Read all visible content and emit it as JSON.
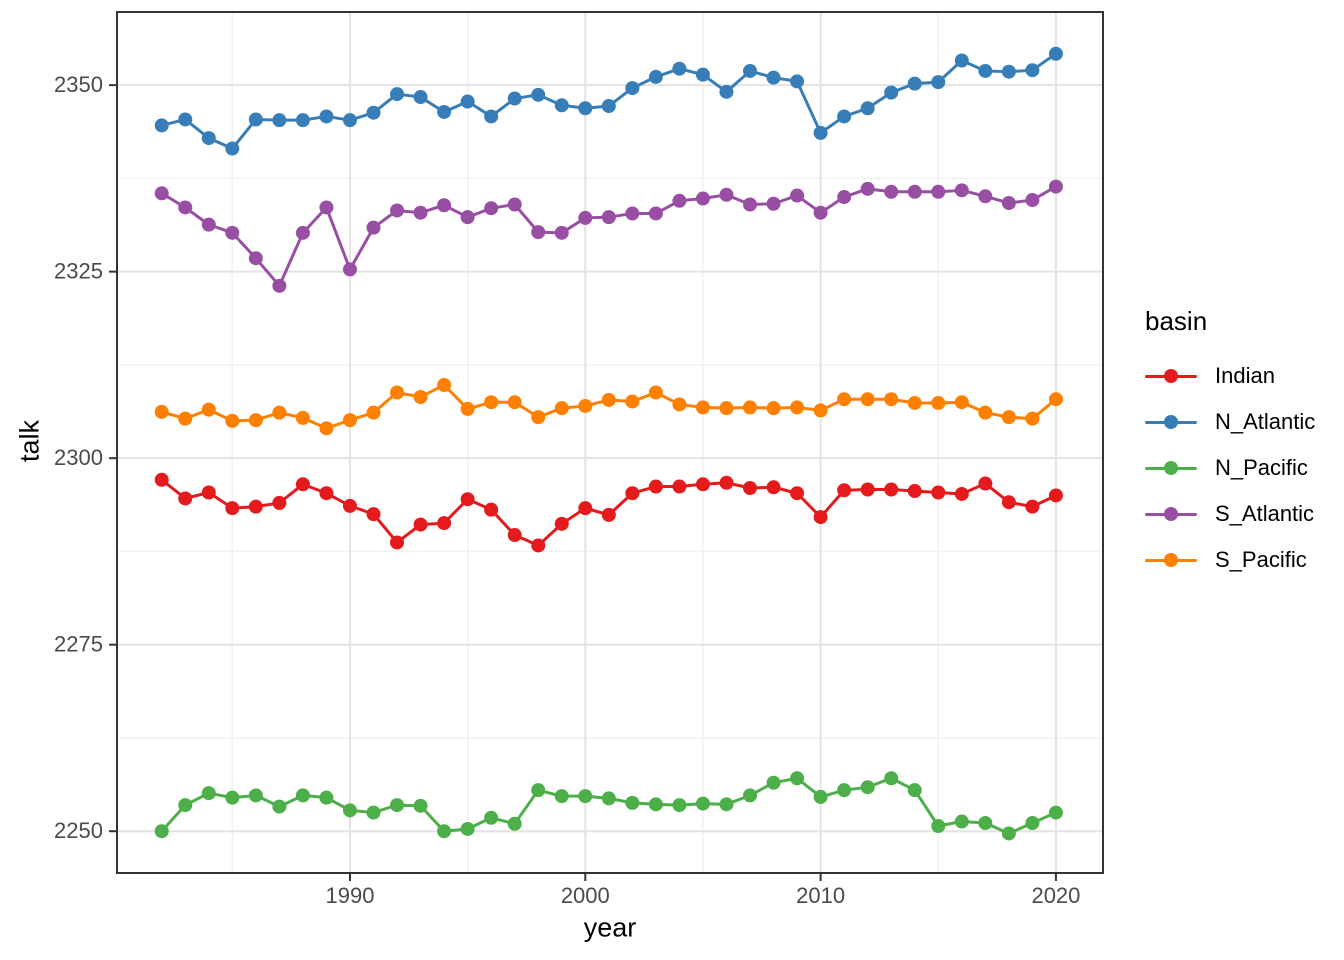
{
  "chart_data": {
    "type": "line",
    "title": "",
    "xlabel": "year",
    "ylabel": "talk",
    "legend_title": "basin",
    "legend_position": "right",
    "grid": true,
    "x": [
      1982,
      1983,
      1984,
      1985,
      1986,
      1987,
      1988,
      1989,
      1990,
      1991,
      1992,
      1993,
      1994,
      1995,
      1996,
      1997,
      1998,
      1999,
      2000,
      2001,
      2002,
      2003,
      2004,
      2005,
      2006,
      2007,
      2008,
      2009,
      2010,
      2011,
      2012,
      2013,
      2014,
      2015,
      2016,
      2017,
      2018,
      2019,
      2020
    ],
    "series": [
      {
        "name": "Indian",
        "color": "#E41A1C",
        "values": [
          2297.1,
          2294.6,
          2295.4,
          2293.3,
          2293.5,
          2294.0,
          2296.5,
          2295.3,
          2293.6,
          2292.5,
          2288.7,
          2291.1,
          2291.3,
          2294.5,
          2293.1,
          2289.7,
          2288.3,
          2291.2,
          2293.3,
          2292.4,
          2295.3,
          2296.2,
          2296.2,
          2296.5,
          2296.7,
          2296.0,
          2296.1,
          2295.3,
          2292.1,
          2295.7,
          2295.8,
          2295.8,
          2295.6,
          2295.4,
          2295.2,
          2296.6,
          2294.1,
          2293.5,
          2295.0
        ]
      },
      {
        "name": "N_Atlantic",
        "color": "#377EB8",
        "values": [
          2344.6,
          2345.4,
          2342.9,
          2341.5,
          2345.4,
          2345.3,
          2345.3,
          2345.8,
          2345.3,
          2346.3,
          2348.8,
          2348.4,
          2346.4,
          2347.8,
          2345.8,
          2348.2,
          2348.7,
          2347.3,
          2346.9,
          2347.2,
          2349.6,
          2351.1,
          2352.2,
          2351.4,
          2349.1,
          2351.9,
          2351.0,
          2350.5,
          2343.6,
          2345.8,
          2346.9,
          2349.0,
          2350.2,
          2350.4,
          2353.3,
          2351.9,
          2351.8,
          2352.0,
          2354.2
        ]
      },
      {
        "name": "N_Pacific",
        "color": "#4DAF4A",
        "values": [
          2250.0,
          2253.5,
          2255.1,
          2254.5,
          2254.8,
          2253.3,
          2254.8,
          2254.5,
          2252.8,
          2252.5,
          2253.5,
          2253.4,
          2250.0,
          2250.3,
          2251.8,
          2251.0,
          2255.5,
          2254.7,
          2254.7,
          2254.4,
          2253.8,
          2253.6,
          2253.5,
          2253.7,
          2253.6,
          2254.8,
          2256.5,
          2257.1,
          2254.6,
          2255.5,
          2255.9,
          2257.1,
          2255.5,
          2250.7,
          2251.3,
          2251.1,
          2249.7,
          2251.1,
          2252.5
        ]
      },
      {
        "name": "S_Atlantic",
        "color": "#984EA3",
        "values": [
          2335.5,
          2333.6,
          2331.3,
          2330.2,
          2326.8,
          2323.1,
          2330.2,
          2333.6,
          2325.3,
          2330.9,
          2333.2,
          2332.9,
          2333.9,
          2332.3,
          2333.5,
          2334.0,
          2330.3,
          2330.2,
          2332.2,
          2332.3,
          2332.8,
          2332.8,
          2334.5,
          2334.8,
          2335.3,
          2334.0,
          2334.1,
          2335.2,
          2332.9,
          2335.0,
          2336.1,
          2335.7,
          2335.7,
          2335.7,
          2335.9,
          2335.1,
          2334.2,
          2334.6,
          2336.4
        ]
      },
      {
        "name": "S_Pacific",
        "color": "#FF7F00",
        "values": [
          2306.2,
          2305.3,
          2306.5,
          2305.0,
          2305.1,
          2306.1,
          2305.4,
          2304.0,
          2305.1,
          2306.1,
          2308.8,
          2308.2,
          2309.8,
          2306.6,
          2307.5,
          2307.5,
          2305.5,
          2306.7,
          2307.0,
          2307.8,
          2307.6,
          2308.8,
          2307.2,
          2306.8,
          2306.7,
          2306.8,
          2306.7,
          2306.8,
          2306.4,
          2307.9,
          2307.9,
          2307.9,
          2307.4,
          2307.4,
          2307.5,
          2306.1,
          2305.5,
          2305.3,
          2307.9
        ]
      }
    ],
    "x_ticks": [
      1990,
      2000,
      2010,
      2020
    ],
    "x_minor": [
      1985,
      1995,
      2005,
      2015
    ],
    "y_ticks": [
      2250,
      2275,
      2300,
      2325,
      2350
    ],
    "y_minor": [
      2262.5,
      2287.5,
      2312.5,
      2337.5
    ],
    "xlim": [
      1980.1,
      2022.0
    ],
    "ylim": [
      2244.4,
      2359.8
    ],
    "colors": {
      "tick_label": "#4a4a4a",
      "axis_title": "#000000",
      "grid_major": "#e3e3e3",
      "grid_minor": "#f1f1f1",
      "panel_border": "#333333",
      "panel_bg": "#ffffff"
    }
  }
}
